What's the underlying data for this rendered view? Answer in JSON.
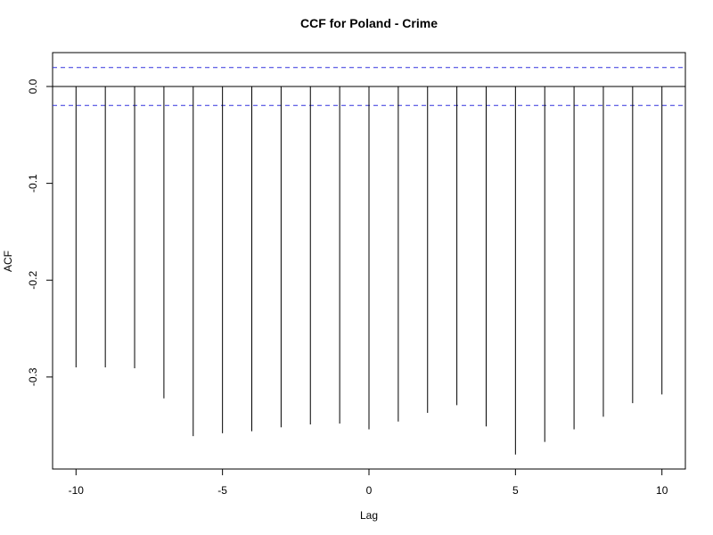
{
  "chart_data": {
    "type": "bar",
    "style": "vertical-lines",
    "title": "CCF for Poland - Crime",
    "xlabel": "Lag",
    "ylabel": "ACF",
    "x": [
      -10,
      -9,
      -8,
      -7,
      -6,
      -5,
      -4,
      -3,
      -2,
      -1,
      0,
      1,
      2,
      3,
      4,
      5,
      6,
      7,
      8,
      9,
      10
    ],
    "values": [
      -0.29,
      -0.29,
      -0.291,
      -0.322,
      -0.361,
      -0.358,
      -0.356,
      -0.352,
      -0.349,
      -0.348,
      -0.354,
      -0.346,
      -0.337,
      -0.329,
      -0.351,
      -0.38,
      -0.367,
      -0.354,
      -0.341,
      -0.327,
      -0.318
    ],
    "xlim": [
      -10.8,
      10.8
    ],
    "ylim": [
      -0.395,
      0.035
    ],
    "xticks": [
      -10,
      -5,
      0,
      5,
      10
    ],
    "xtick_labels": [
      "-10",
      "-5",
      "0",
      "5",
      "10"
    ],
    "yticks": [
      0.0,
      -0.1,
      -0.2,
      -0.3
    ],
    "ytick_labels": [
      "0.0",
      "-0.1",
      "-0.2",
      "-0.3"
    ],
    "zero_line": 0.0,
    "confidence_bounds": [
      0.0196,
      -0.0196
    ],
    "bound_color": "#3333dd",
    "line_color": "#000000",
    "grid": false,
    "legend": "none"
  }
}
